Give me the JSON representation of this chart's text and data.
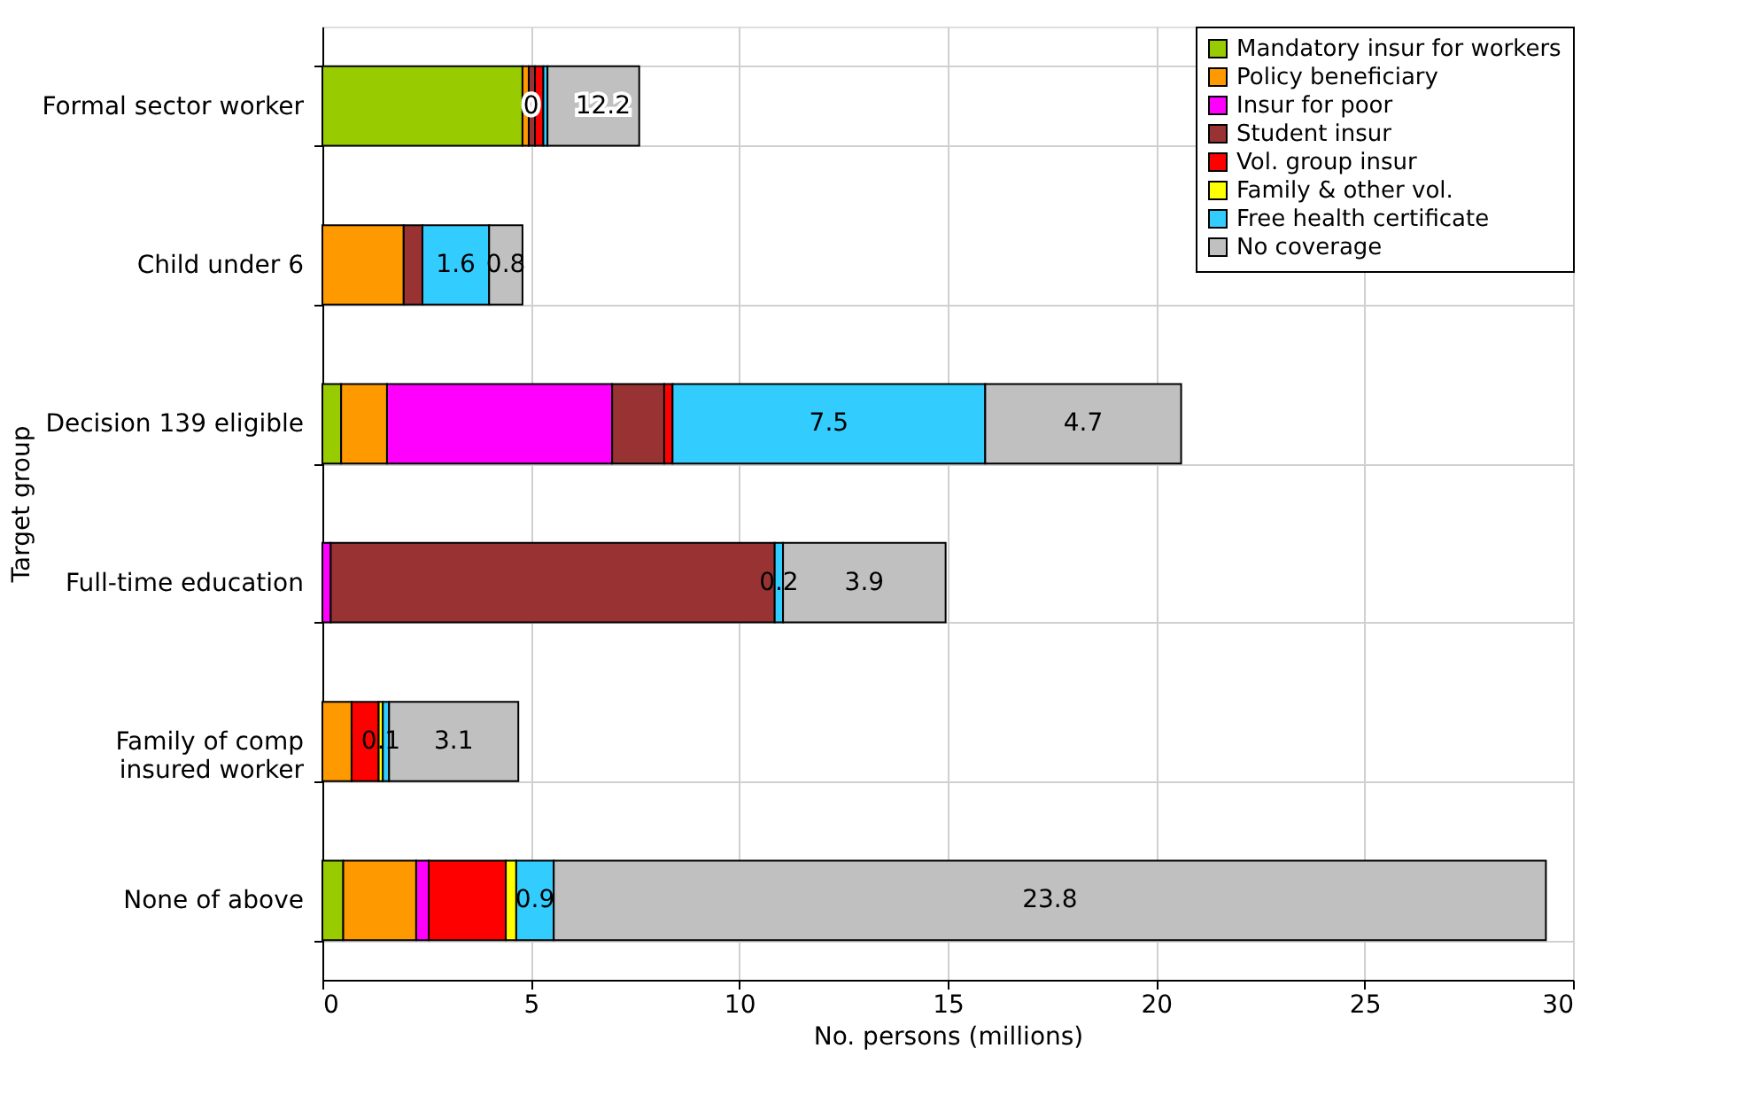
{
  "chart_data": {
    "type": "bar",
    "orientation": "horizontal",
    "stacked": true,
    "categories": [
      "Formal sector worker",
      "Child under 6",
      "Decision 139 eligible",
      "Full-time education",
      "Family of comp\ninsured worker",
      "None of above"
    ],
    "xlabel": "No. persons (millions)",
    "ylabel": "Target group",
    "xlim": [
      0,
      30
    ],
    "xticks": [
      0,
      5,
      10,
      15,
      20,
      25,
      30
    ],
    "grid": true,
    "legend": "top right",
    "series": [
      {
        "name": "Mandatory insur for workers",
        "color": "#99cc00",
        "values": [
          4.8,
          null,
          0.45,
          null,
          null,
          0.5
        ]
      },
      {
        "name": "Policy beneficiary",
        "color": "#ff9900",
        "values": [
          0.15,
          1.95,
          1.1,
          null,
          0.7,
          1.75
        ]
      },
      {
        "name": "Insur for poor",
        "color": "#ff00ff",
        "values": [
          null,
          null,
          5.4,
          0.2,
          null,
          0.3
        ]
      },
      {
        "name": "Student insur",
        "color": "#993333",
        "values": [
          0.15,
          0.45,
          1.25,
          10.65,
          null,
          null
        ]
      },
      {
        "name": "Vol. group insur",
        "color": "#ff0000",
        "values": [
          0.2,
          null,
          0.2,
          null,
          0.65,
          1.85
        ]
      },
      {
        "name": "Family & other vol.",
        "color": "#ffff00",
        "values": [
          null,
          null,
          null,
          null,
          0.1,
          0.25
        ],
        "value_labels": [
          null,
          null,
          null,
          null,
          "0.1",
          null
        ]
      },
      {
        "name": "Free health certificate",
        "color": "#33ccff",
        "values": [
          0.1,
          1.6,
          7.5,
          0.2,
          0.15,
          0.9
        ],
        "value_labels": [
          null,
          "1.6",
          "7.5",
          "0.2",
          null,
          "0.9"
        ]
      },
      {
        "name": "No coverage",
        "color": "#c0c0c0",
        "values": [
          2.2,
          0.8,
          4.7,
          3.9,
          3.1,
          23.8
        ],
        "value_labels": [
          null,
          "0.8",
          "4.7",
          "3.9",
          "3.1",
          "23.8"
        ]
      }
    ],
    "annotations": [
      {
        "text": "0",
        "x": 5.45,
        "y": "Formal sector worker"
      },
      {
        "text": "12.2",
        "x": 7.65,
        "y": "Formal sector worker"
      }
    ]
  }
}
